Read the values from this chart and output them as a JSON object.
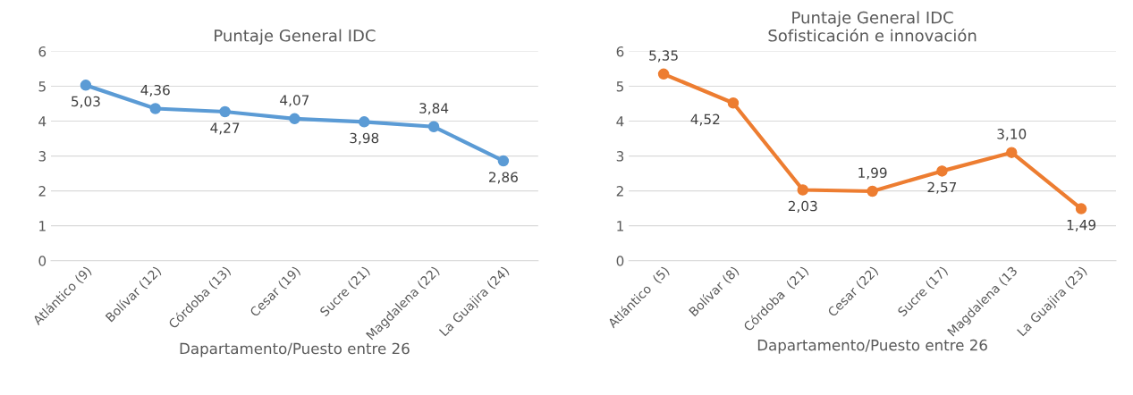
{
  "chart_data": [
    {
      "type": "line",
      "title": "Puntaje General IDC",
      "xlabel": "Dapartamento/Puesto entre 26",
      "categories": [
        "Atlántico (9)",
        "Bolívar (12)",
        "Córdoba (13)",
        "Cesar (19)",
        "Sucre (21)",
        "Magdalena (22)",
        "La Guajira (24)"
      ],
      "series": [
        {
          "color": "#5b9bd5",
          "values": [
            5.03,
            4.36,
            4.27,
            4.07,
            3.98,
            3.84,
            2.86
          ],
          "value_labels": [
            "5,03",
            "4,36",
            "4,27",
            "4,07",
            "3,98",
            "3,84",
            "2,86"
          ]
        }
      ],
      "ylim": [
        0,
        6
      ],
      "yticks": [
        0,
        1,
        2,
        3,
        4,
        5,
        6
      ],
      "grid": "y",
      "marker": "circle",
      "legend": false
    },
    {
      "type": "line",
      "title": "Puntaje General IDC",
      "subtitle": "Sofisticación e innovación",
      "xlabel": "Dapartamento/Puesto entre 26",
      "categories": [
        "Atlántico  (5)",
        "Bolívar (8)",
        "Córdoba  (21)",
        "Cesar (22)",
        "Sucre (17)",
        "Magdalena (13",
        "La Guajira (23)"
      ],
      "series": [
        {
          "color": "#ed7d31",
          "values": [
            5.35,
            4.52,
            2.03,
            1.99,
            2.57,
            3.1,
            1.49
          ],
          "value_labels": [
            "5,35",
            "4,52",
            "2,03",
            "1,99",
            "2,57",
            "3,10",
            "1,49"
          ]
        }
      ],
      "ylim": [
        0,
        6
      ],
      "yticks": [
        0,
        1,
        2,
        3,
        4,
        5,
        6
      ],
      "grid": "y",
      "marker": "circle",
      "legend": false
    }
  ]
}
